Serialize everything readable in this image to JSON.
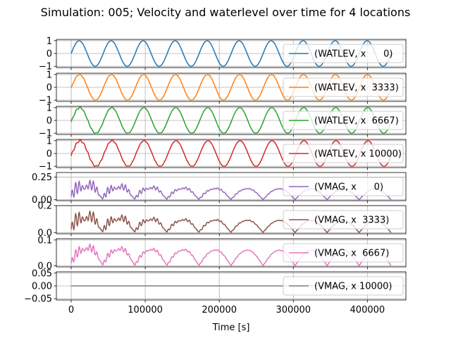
{
  "chart_data": {
    "type": "line",
    "title": "Simulation: 005; Velocity and waterlevel over time for 4 locations",
    "xlabel": "Time [s]",
    "xlim": [
      -20000,
      452000
    ],
    "x_ticks": [
      0,
      100000,
      200000,
      300000,
      400000
    ],
    "x_tick_labels": [
      "0",
      "100000",
      "200000",
      "300000",
      "400000"
    ],
    "x_range": [
      0,
      432000
    ],
    "grid": true,
    "legend_position": "right",
    "subplots": [
      {
        "series_name": "(WATLEV, x      0)",
        "color": "#1f77b4",
        "quantity": "waterlevel",
        "amplitude": 1.0,
        "period": 43200,
        "phase": 0,
        "ylim": [
          -1.1,
          1.1
        ],
        "y_ticks": [
          1,
          0,
          -1
        ],
        "y_tick_labels": [
          "1",
          "0",
          "−1"
        ]
      },
      {
        "series_name": "(WATLEV, x  3333)",
        "color": "#ff7f0e",
        "quantity": "waterlevel",
        "amplitude": 1.0,
        "period": 43200,
        "phase": 0.06,
        "ylim": [
          -1.1,
          1.1
        ],
        "y_ticks": [
          1,
          0,
          -1
        ],
        "y_tick_labels": [
          "1",
          "0",
          "−1"
        ]
      },
      {
        "series_name": "(WATLEV, x  6667)",
        "color": "#2ca02c",
        "quantity": "waterlevel",
        "amplitude": 1.0,
        "period": 43200,
        "phase": 0.12,
        "ylim": [
          -1.1,
          1.1
        ],
        "y_ticks": [
          1,
          0,
          -1
        ],
        "y_tick_labels": [
          "1",
          "0",
          "−1"
        ]
      },
      {
        "series_name": "(WATLEV, x 10000)",
        "color": "#d62728",
        "quantity": "waterlevel",
        "amplitude": 1.0,
        "period": 43200,
        "phase": 0.18,
        "ylim": [
          -1.1,
          1.1
        ],
        "y_ticks": [
          1,
          0,
          -1
        ],
        "y_tick_labels": [
          "1",
          "0",
          "−1"
        ]
      },
      {
        "series_name": "(VMAG, x      0)",
        "color": "#9467bd",
        "quantity": "velocity",
        "peak": 0.27,
        "steady": 0.12,
        "period": 43200,
        "ylim": [
          -0.01,
          0.3
        ],
        "y_ticks": [
          0.25,
          0.0
        ],
        "y_tick_labels": [
          "0.25",
          "0.00"
        ]
      },
      {
        "series_name": "(VMAG, x  3333)",
        "color": "#8c564b",
        "quantity": "velocity",
        "peak": 0.2,
        "steady": 0.09,
        "period": 43200,
        "ylim": [
          -0.008,
          0.2
        ],
        "y_ticks": [
          0.2,
          0.0
        ],
        "y_tick_labels": [
          "0.2",
          "0.0"
        ]
      },
      {
        "series_name": "(VMAG, x  6667)",
        "color": "#e377c2",
        "quantity": "velocity",
        "peak": 0.1,
        "steady": 0.06,
        "period": 43200,
        "ylim": [
          -0.004,
          0.105
        ],
        "y_ticks": [
          0.1,
          0.0
        ],
        "y_tick_labels": [
          "0.1",
          "0.0"
        ]
      },
      {
        "series_name": "(VMAG, x 10000)",
        "color": "#7f7f7f",
        "quantity": "velocity",
        "peak": 0.0,
        "steady": 0.0,
        "period": 43200,
        "ylim": [
          -0.055,
          0.055
        ],
        "y_ticks": [
          0.05,
          0.0,
          -0.05
        ],
        "y_tick_labels": [
          "0.05",
          "0.00",
          "−0.05"
        ]
      }
    ]
  }
}
